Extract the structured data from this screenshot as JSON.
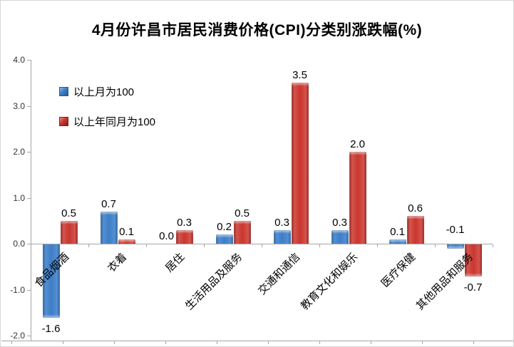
{
  "chart_data": {
    "type": "bar",
    "title": "4月份许昌市居民消费价格(CPI)分类别涨跌幅(%)",
    "categories": [
      "食品烟酒",
      "衣着",
      "居住",
      "生活用品及服务",
      "交通和通信",
      "教育文化和娱乐",
      "医疗保健",
      "其他用品和服务"
    ],
    "series": [
      {
        "name": "以上月为100",
        "color": "#3e7ec6",
        "edge_color": "#27598f",
        "values": [
          -1.6,
          0.7,
          0.0,
          0.2,
          0.3,
          0.3,
          0.1,
          -0.1
        ]
      },
      {
        "name": "以上年同月为100",
        "color": "#c9362f",
        "edge_color": "#8c1b18",
        "values": [
          0.5,
          0.1,
          0.3,
          0.5,
          3.5,
          2.0,
          0.6,
          -0.7
        ]
      }
    ],
    "ylim": [
      -2.0,
      4.0
    ],
    "ytick_step": 1.0,
    "ytick_labels": [
      "4.0",
      "3.0",
      "2.0",
      "1.0",
      "0.0",
      "-1.0",
      "-2.0"
    ],
    "grid": false,
    "legend_position": "inside-top-left",
    "axis_color": "#a6a6a6",
    "label_overrides": [
      {
        "series": 0,
        "index": 7,
        "placement": "above_axis"
      }
    ]
  }
}
